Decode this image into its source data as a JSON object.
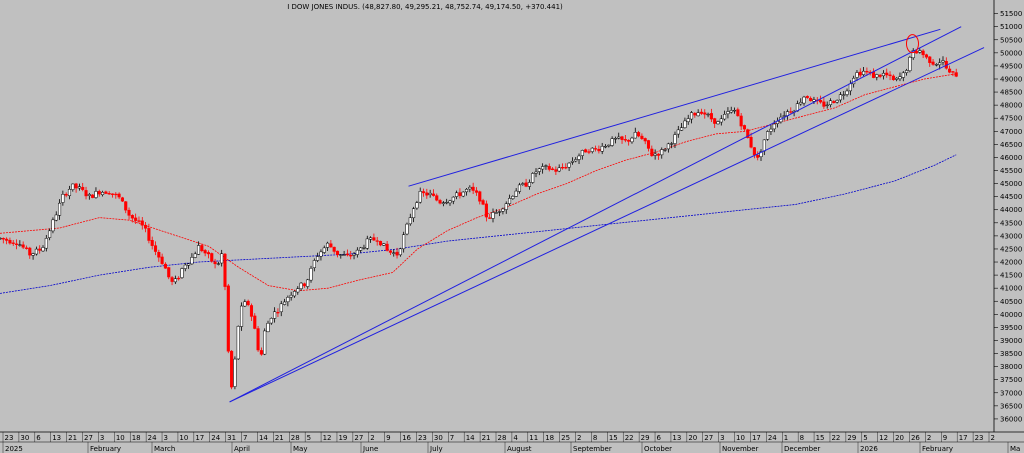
{
  "chart_data": {
    "type": "candlestick",
    "title": "I DOW JONES INDUS. (48,827.80, 49,295.21, 48,752.74, 49,174.50, +370.441)",
    "y_axis_side": "right",
    "ylim": [
      35500,
      51600
    ],
    "y_ticks": [
      36000,
      36500,
      37000,
      37500,
      38000,
      38500,
      39000,
      39500,
      40000,
      40500,
      41000,
      41500,
      42000,
      42500,
      43000,
      43500,
      44000,
      44500,
      45000,
      45500,
      46000,
      46500,
      47000,
      47500,
      48000,
      48500,
      49000,
      49500,
      50000,
      50500,
      51000,
      51500
    ],
    "y_tick_labels": [
      "36000",
      "36500",
      "37000",
      "37500",
      "38000",
      "38500",
      "39000",
      "39500",
      "40000",
      "40500",
      "41000",
      "41500",
      "42000",
      "42500",
      "43000",
      "43500",
      "44000",
      "44500",
      "45000",
      "45500",
      "46000",
      "46500",
      "47000",
      "47500",
      "48000",
      "48500",
      "49000",
      "49500",
      "50000",
      "50500",
      "51000",
      "51500"
    ],
    "x_day_labels": [
      "23",
      "30",
      "6",
      "13",
      "21",
      "27",
      "3",
      "10",
      "18",
      "24",
      "3",
      "10",
      "17",
      "24",
      "31",
      "7",
      "14",
      "21",
      "28",
      "5",
      "12",
      "19",
      "27",
      "2",
      "9",
      "16",
      "23",
      "30",
      "7",
      "14",
      "21",
      "28",
      "4",
      "11",
      "18",
      "25",
      "2",
      "8",
      "15",
      "22",
      "29",
      "6",
      "13",
      "20",
      "27",
      "3",
      "10",
      "17",
      "24",
      "1",
      "8",
      "15",
      "22",
      "29",
      "5",
      "12",
      "20",
      "26",
      "2",
      "9",
      "17",
      "23",
      "2"
    ],
    "x_month_labels": [
      "2025",
      "February",
      "March",
      "April",
      "May",
      "June",
      "July",
      "August",
      "September",
      "October",
      "November",
      "December",
      "2026",
      "February",
      "Ma"
    ],
    "colors": {
      "up": "#000000",
      "down": "#ff0000",
      "ma_fast": "#ff0000",
      "ma_slow": "#0000cc",
      "trend": "#2020e0"
    },
    "trendlines": [
      {
        "points": [
          [
            0.231,
            36650
          ],
          [
            0.967,
            51000
          ]
        ]
      },
      {
        "points": [
          [
            0.411,
            44900
          ],
          [
            0.946,
            50900
          ]
        ]
      },
      {
        "points": [
          [
            0.231,
            36650
          ],
          [
            0.99,
            50200
          ]
        ]
      }
    ],
    "highlight_circle": {
      "x": 0.918,
      "y": 50350
    },
    "anchors": [
      [
        0.0,
        42900
      ],
      [
        0.018,
        42750
      ],
      [
        0.03,
        42300
      ],
      [
        0.042,
        42500
      ],
      [
        0.055,
        43700
      ],
      [
        0.063,
        44500
      ],
      [
        0.072,
        44900
      ],
      [
        0.08,
        44800
      ],
      [
        0.09,
        44500
      ],
      [
        0.1,
        44700
      ],
      [
        0.11,
        44700
      ],
      [
        0.12,
        44450
      ],
      [
        0.13,
        43800
      ],
      [
        0.145,
        43300
      ],
      [
        0.155,
        42500
      ],
      [
        0.165,
        41900
      ],
      [
        0.172,
        41200
      ],
      [
        0.178,
        41300
      ],
      [
        0.185,
        41900
      ],
      [
        0.192,
        42100
      ],
      [
        0.2,
        42600
      ],
      [
        0.21,
        42200
      ],
      [
        0.218,
        41800
      ],
      [
        0.223,
        42300
      ],
      [
        0.227,
        40800
      ],
      [
        0.23,
        38300
      ],
      [
        0.232,
        36900
      ],
      [
        0.236,
        38100
      ],
      [
        0.24,
        39700
      ],
      [
        0.244,
        40400
      ],
      [
        0.25,
        40400
      ],
      [
        0.256,
        39500
      ],
      [
        0.262,
        38200
      ],
      [
        0.266,
        39300
      ],
      [
        0.272,
        39900
      ],
      [
        0.28,
        40200
      ],
      [
        0.29,
        40700
      ],
      [
        0.298,
        41000
      ],
      [
        0.308,
        41200
      ],
      [
        0.318,
        42200
      ],
      [
        0.33,
        42700
      ],
      [
        0.34,
        42300
      ],
      [
        0.35,
        42200
      ],
      [
        0.36,
        42400
      ],
      [
        0.37,
        42800
      ],
      [
        0.38,
        42900
      ],
      [
        0.39,
        42400
      ],
      [
        0.4,
        42300
      ],
      [
        0.408,
        43200
      ],
      [
        0.415,
        44000
      ],
      [
        0.422,
        44600
      ],
      [
        0.432,
        44600
      ],
      [
        0.442,
        44300
      ],
      [
        0.452,
        44400
      ],
      [
        0.462,
        44600
      ],
      [
        0.472,
        44800
      ],
      [
        0.482,
        44500
      ],
      [
        0.49,
        43700
      ],
      [
        0.5,
        43900
      ],
      [
        0.51,
        44300
      ],
      [
        0.52,
        44800
      ],
      [
        0.53,
        45000
      ],
      [
        0.54,
        45500
      ],
      [
        0.55,
        45600
      ],
      [
        0.56,
        45500
      ],
      [
        0.57,
        45700
      ],
      [
        0.58,
        46000
      ],
      [
        0.59,
        46300
      ],
      [
        0.6,
        46300
      ],
      [
        0.61,
        46500
      ],
      [
        0.62,
        46700
      ],
      [
        0.63,
        46600
      ],
      [
        0.64,
        46900
      ],
      [
        0.648,
        46600
      ],
      [
        0.656,
        46100
      ],
      [
        0.665,
        46200
      ],
      [
        0.675,
        46600
      ],
      [
        0.685,
        47100
      ],
      [
        0.695,
        47600
      ],
      [
        0.705,
        47800
      ],
      [
        0.715,
        47500
      ],
      [
        0.723,
        47300
      ],
      [
        0.732,
        47700
      ],
      [
        0.74,
        47800
      ],
      [
        0.748,
        47100
      ],
      [
        0.755,
        46500
      ],
      [
        0.762,
        45900
      ],
      [
        0.77,
        46800
      ],
      [
        0.78,
        47400
      ],
      [
        0.79,
        47700
      ],
      [
        0.8,
        47900
      ],
      [
        0.81,
        48400
      ],
      [
        0.82,
        48100
      ],
      [
        0.83,
        48000
      ],
      [
        0.84,
        48200
      ],
      [
        0.85,
        48500
      ],
      [
        0.86,
        49200
      ],
      [
        0.87,
        49300
      ],
      [
        0.88,
        49100
      ],
      [
        0.89,
        49200
      ],
      [
        0.9,
        48900
      ],
      [
        0.91,
        49200
      ],
      [
        0.918,
        50000
      ],
      [
        0.925,
        50100
      ],
      [
        0.932,
        49800
      ],
      [
        0.94,
        49600
      ],
      [
        0.948,
        49700
      ],
      [
        0.955,
        49200
      ],
      [
        0.962,
        49174
      ]
    ],
    "ma_fast": [
      [
        0.0,
        43100
      ],
      [
        0.06,
        43300
      ],
      [
        0.1,
        43700
      ],
      [
        0.13,
        43600
      ],
      [
        0.17,
        43100
      ],
      [
        0.21,
        42600
      ],
      [
        0.24,
        41800
      ],
      [
        0.27,
        41100
      ],
      [
        0.3,
        40900
      ],
      [
        0.33,
        41000
      ],
      [
        0.36,
        41300
      ],
      [
        0.395,
        41600
      ],
      [
        0.42,
        42500
      ],
      [
        0.45,
        43200
      ],
      [
        0.48,
        43700
      ],
      [
        0.51,
        44100
      ],
      [
        0.54,
        44600
      ],
      [
        0.57,
        45000
      ],
      [
        0.6,
        45500
      ],
      [
        0.63,
        45900
      ],
      [
        0.66,
        46200
      ],
      [
        0.69,
        46600
      ],
      [
        0.72,
        46900
      ],
      [
        0.75,
        47000
      ],
      [
        0.78,
        47300
      ],
      [
        0.81,
        47600
      ],
      [
        0.84,
        47900
      ],
      [
        0.87,
        48400
      ],
      [
        0.9,
        48700
      ],
      [
        0.93,
        49000
      ],
      [
        0.962,
        49200
      ]
    ],
    "ma_slow": [
      [
        0.0,
        40800
      ],
      [
        0.05,
        41100
      ],
      [
        0.1,
        41500
      ],
      [
        0.15,
        41800
      ],
      [
        0.2,
        42000
      ],
      [
        0.25,
        42100
      ],
      [
        0.3,
        42200
      ],
      [
        0.35,
        42300
      ],
      [
        0.4,
        42500
      ],
      [
        0.45,
        42800
      ],
      [
        0.5,
        43000
      ],
      [
        0.55,
        43200
      ],
      [
        0.6,
        43400
      ],
      [
        0.65,
        43600
      ],
      [
        0.7,
        43800
      ],
      [
        0.75,
        44000
      ],
      [
        0.8,
        44200
      ],
      [
        0.85,
        44600
      ],
      [
        0.9,
        45100
      ],
      [
        0.94,
        45700
      ],
      [
        0.962,
        46100
      ]
    ]
  }
}
